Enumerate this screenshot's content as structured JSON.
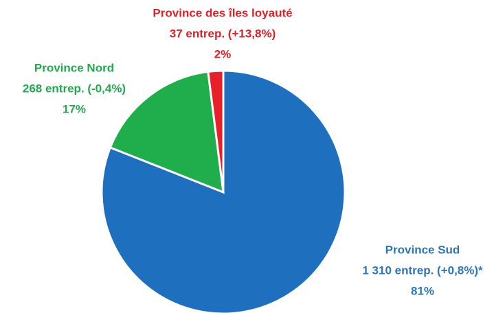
{
  "chart_data": {
    "type": "pie",
    "categories": [
      "Province Sud",
      "Province Nord",
      "Province des îles loyauté"
    ],
    "details": [
      "1 310 entrep. (+0,8%)*",
      "268 entrep. (-0,4%)",
      "37 entrep. (+13,8%)"
    ],
    "values": [
      81,
      17,
      2
    ],
    "value_labels": [
      "81%",
      "17%",
      "2%"
    ],
    "colors": [
      "#1f6fbf",
      "#1fae4b",
      "#e8202a"
    ],
    "label_colors": [
      "#2e75b6",
      "#22a94f",
      "#e31e24"
    ]
  }
}
